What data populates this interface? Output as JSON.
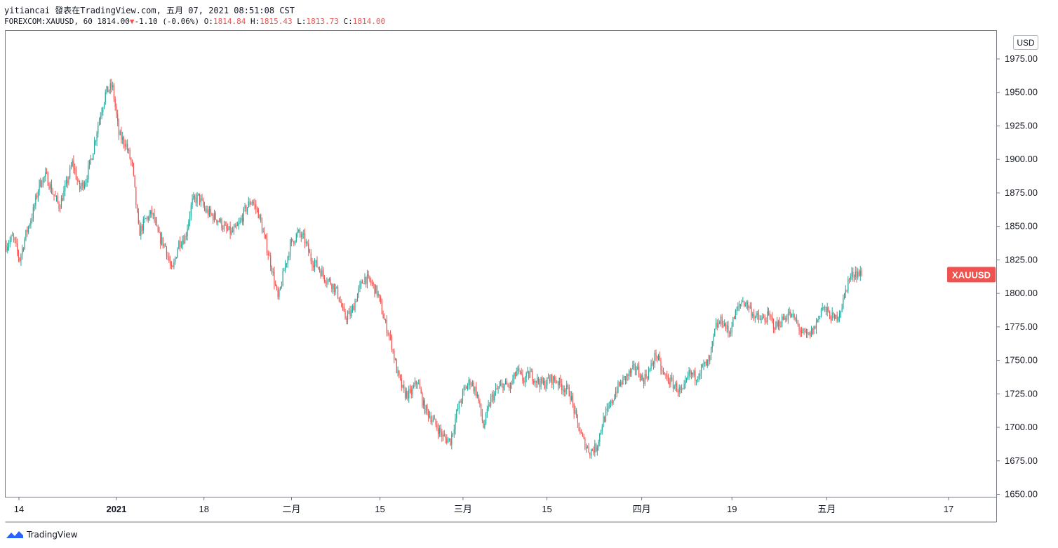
{
  "header": {
    "line1": "yitiancai 發表在TradingView.com, 五月 07, 2021 08:51:08 CST",
    "symbol": "FOREXCOM:XAUUSD, 60",
    "last": "1814.00",
    "change": "-1.10 (-0.06%)",
    "o_label": "O:",
    "o_value": "1814.84",
    "h_label": "H:",
    "h_value": "1815.43",
    "l_label": "L:",
    "l_value": "1813.73",
    "c_label": "C:",
    "c_value": "1814.00"
  },
  "footer": {
    "brand": "TradingView",
    "brand_icon": "tradingview-logo-icon"
  },
  "colors": {
    "up": "#26a69a",
    "down": "#ef5350",
    "axis": "#131722",
    "grid_border": "#787b86"
  },
  "chart_data": {
    "type": "candlestick",
    "currency_label": "USD",
    "symbol_label": "XAUUSD",
    "last_price": 1814.0,
    "ylim": [
      1650,
      1985
    ],
    "yticks": [
      1650,
      1675,
      1700,
      1725,
      1750,
      1775,
      1800,
      1825,
      1850,
      1875,
      1900,
      1925,
      1950,
      1975
    ],
    "ytick_labels": [
      "1650.00",
      "1675.00",
      "1700.00",
      "1725.00",
      "1750.00",
      "1775.00",
      "1800.00",
      "1825.00",
      "1850.00",
      "1875.00",
      "1900.00",
      "1925.00",
      "1950.00",
      "1975.00"
    ],
    "xticks": [
      {
        "label": "14",
        "bold": false
      },
      {
        "label": "2021",
        "bold": true
      },
      {
        "label": "18",
        "bold": false
      },
      {
        "label": "二月",
        "bold": false
      },
      {
        "label": "15",
        "bold": false
      },
      {
        "label": "三月",
        "bold": false
      },
      {
        "label": "15",
        "bold": false
      },
      {
        "label": "四月",
        "bold": false
      },
      {
        "label": "19",
        "bold": false
      },
      {
        "label": "五月",
        "bold": false
      },
      {
        "label": "17",
        "bold": false
      }
    ],
    "xtick_positions": [
      0.0,
      0.108,
      0.205,
      0.302,
      0.4,
      0.492,
      0.585,
      0.69,
      0.79,
      0.895,
      1.03
    ],
    "x_data_fraction": 0.98,
    "price_path": [
      1836,
      1842,
      1825,
      1845,
      1860,
      1882,
      1888,
      1875,
      1865,
      1880,
      1898,
      1878,
      1885,
      1905,
      1930,
      1950,
      1955,
      1918,
      1912,
      1895,
      1845,
      1855,
      1860,
      1842,
      1835,
      1815,
      1838,
      1842,
      1868,
      1872,
      1862,
      1858,
      1855,
      1848,
      1845,
      1850,
      1862,
      1870,
      1860,
      1840,
      1820,
      1795,
      1820,
      1838,
      1845,
      1840,
      1825,
      1820,
      1812,
      1808,
      1800,
      1782,
      1785,
      1800,
      1812,
      1808,
      1800,
      1780,
      1765,
      1740,
      1725,
      1725,
      1735,
      1715,
      1708,
      1700,
      1692,
      1690,
      1712,
      1727,
      1735,
      1725,
      1700,
      1720,
      1728,
      1732,
      1730,
      1742,
      1735,
      1740,
      1735,
      1732,
      1736,
      1735,
      1730,
      1726,
      1705,
      1690,
      1682,
      1685,
      1705,
      1715,
      1728,
      1735,
      1740,
      1745,
      1735,
      1742,
      1755,
      1740,
      1735,
      1730,
      1725,
      1740,
      1738,
      1745,
      1748,
      1775,
      1780,
      1770,
      1785,
      1795,
      1790,
      1782,
      1780,
      1783,
      1775,
      1780,
      1785,
      1780,
      1770,
      1768,
      1775,
      1790,
      1785,
      1780,
      1790,
      1810,
      1816,
      1814
    ]
  }
}
